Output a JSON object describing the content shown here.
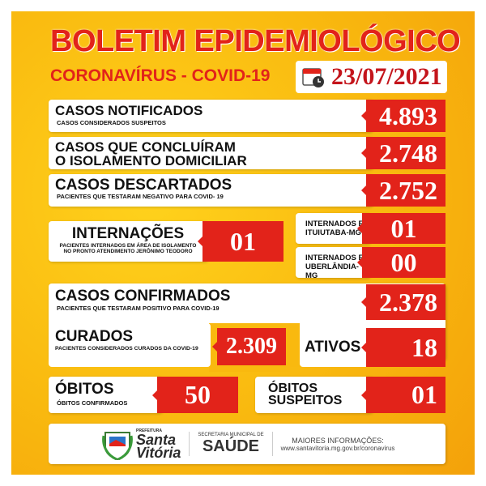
{
  "header": {
    "title": "BOLETIM EPIDEMIOLÓGICO",
    "subtitle": "CORONAVÍRUS - COVID-19",
    "date": "23/07/2021",
    "date_icon": "calendar-clock-icon"
  },
  "stats": {
    "notificados": {
      "title": "CASOS NOTIFICADOS",
      "desc": "CASOS CONSIDERADOS SUSPEITOS",
      "value": "4.893"
    },
    "isolamento": {
      "title1": "CASOS QUE CONCLUÍRAM",
      "title2": "O ISOLAMENTO DOMICILIAR",
      "value": "2.748"
    },
    "descartados": {
      "title": "CASOS DESCARTADOS",
      "desc": "PACIENTES QUE TESTARAM NEGATIVO PARA COVID- 19",
      "value": "2.752"
    },
    "internacoes": {
      "title": "INTERNAÇÕES",
      "desc1": "PACIENTES INTERNADOS EM ÁREA DE ISOLAMENTO",
      "desc2": "NO PRONTO ATENDIMENTO JERÔNIMO TEODORO",
      "value": "01"
    },
    "ituiutaba": {
      "title1": "INTERNADOS EM",
      "title2": "ITUIUTABA-MG",
      "value": "01"
    },
    "uberlandia": {
      "title1": "INTERNADOS EM",
      "title2": "UBERLÂNDIA-MG",
      "value": "00"
    },
    "confirmados": {
      "title": "CASOS CONFIRMADOS",
      "desc": "PACIENTES QUE TESTARAM POSITIVO PARA COVID-19",
      "value": "2.378"
    },
    "curados": {
      "title": "CURADOS",
      "desc": "PACIENTES CONSIDERADOS CURADOS DA COVID-19",
      "value": "2.309"
    },
    "ativos": {
      "title": "ATIVOS",
      "value": "18"
    },
    "obitos": {
      "title": "ÓBITOS",
      "desc": "ÓBITOS CONFIRMADOS",
      "value": "50"
    },
    "obitos_suspeitos": {
      "title1": "ÓBITOS",
      "title2": "SUSPEITOS",
      "value": "01"
    }
  },
  "footer": {
    "logo_text1": "Santa",
    "logo_text2": "Vitória",
    "logo_small": "PREFEITURA",
    "secretaria": "SECRETARIA MUNICIPAL DE",
    "saude": "SAÚDE",
    "info_label": "MAIORES INFORMAÇÕES:",
    "url": "www.santavitoria.mg.gov.br/coronavirus"
  },
  "colors": {
    "red": "#e2231a",
    "yellow": "#f9c316"
  }
}
